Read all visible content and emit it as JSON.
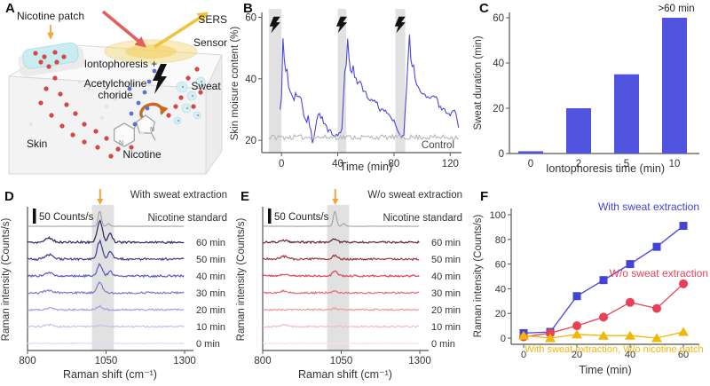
{
  "panels": {
    "A": {
      "letter": "A",
      "labels": {
        "nicotine_patch": "Nicotine patch",
        "sers": "SERS",
        "sensor": "Sensor",
        "iontophoresis": "Iontophoresis +",
        "acetylcholine_line1": "Acetylcholine",
        "acetylcholine_line2": "choride",
        "sweat": "Sweat",
        "skin": "Skin",
        "nicotine": "Nicotine"
      }
    },
    "B": {
      "letter": "B"
    },
    "C": {
      "letter": "C"
    },
    "D": {
      "letter": "D"
    },
    "E": {
      "letter": "E"
    },
    "F": {
      "letter": "F"
    }
  },
  "chart_data": [
    {
      "id": "B",
      "type": "line",
      "title": "",
      "xlabel": "Time (min)",
      "ylabel": "Skin moisure content (%)",
      "xlim": [
        -14,
        128
      ],
      "ylim": [
        16,
        61
      ],
      "xticks": [
        0,
        40,
        80,
        120
      ],
      "yticks": [
        20,
        40,
        60
      ],
      "grid": false,
      "seed": 11,
      "stimulation_bands_min": [
        [
          -9,
          0
        ],
        [
          40,
          46
        ],
        [
          81,
          88
        ]
      ],
      "band_color": "#dcdcdc",
      "bolt_color": "#111111",
      "series": [
        {
          "name": "Iontophoresis",
          "color": "#4a46dc",
          "noise": 0.7,
          "points": [
            [
              -1,
              30
            ],
            [
              0,
              34
            ],
            [
              1,
              53
            ],
            [
              2,
              46
            ],
            [
              3,
              42
            ],
            [
              4,
              43
            ],
            [
              5,
              38
            ],
            [
              6,
              36
            ],
            [
              7,
              35
            ],
            [
              8,
              34
            ],
            [
              9,
              33
            ],
            [
              10,
              35
            ],
            [
              12,
              34
            ],
            [
              14,
              34
            ],
            [
              15,
              31
            ],
            [
              16,
              28
            ],
            [
              17,
              27
            ],
            [
              18,
              26
            ],
            [
              19,
              28
            ],
            [
              20,
              25
            ],
            [
              21,
              23
            ],
            [
              22,
              19
            ],
            [
              23,
              21
            ],
            [
              24,
              23
            ],
            [
              25,
              26
            ],
            [
              26,
              28
            ],
            [
              27,
              29
            ],
            [
              28,
              27
            ],
            [
              29,
              28
            ],
            [
              30,
              26
            ],
            [
              31,
              25
            ],
            [
              32,
              24
            ],
            [
              33,
              23
            ],
            [
              34,
              24
            ],
            [
              35,
              23
            ],
            [
              36,
              22
            ],
            [
              38,
              21
            ],
            [
              40,
              22
            ],
            [
              42,
              22
            ],
            [
              43,
              24
            ],
            [
              44,
              34
            ],
            [
              45,
              43
            ],
            [
              46,
              44
            ],
            [
              47,
              53
            ],
            [
              48,
              47
            ],
            [
              49,
              43
            ],
            [
              50,
              42
            ],
            [
              51,
              44
            ],
            [
              52,
              41
            ],
            [
              54,
              39
            ],
            [
              56,
              39
            ],
            [
              58,
              36
            ],
            [
              60,
              36
            ],
            [
              62,
              33
            ],
            [
              64,
              33
            ],
            [
              66,
              33
            ],
            [
              68,
              32
            ],
            [
              70,
              30
            ],
            [
              72,
              30
            ],
            [
              74,
              30
            ],
            [
              76,
              28
            ],
            [
              78,
              27
            ],
            [
              80,
              26
            ],
            [
              82,
              24
            ],
            [
              84,
              22
            ],
            [
              86,
              21
            ],
            [
              87,
              22
            ],
            [
              88,
              30
            ],
            [
              89,
              38
            ],
            [
              90,
              47
            ],
            [
              91,
              54
            ],
            [
              92,
              46
            ],
            [
              93,
              44
            ],
            [
              94,
              45
            ],
            [
              95,
              40
            ],
            [
              96,
              38
            ],
            [
              98,
              36
            ],
            [
              100,
              35
            ],
            [
              102,
              35
            ],
            [
              104,
              34
            ],
            [
              106,
              33
            ],
            [
              108,
              35
            ],
            [
              110,
              34
            ],
            [
              112,
              31
            ],
            [
              114,
              30
            ],
            [
              116,
              30
            ],
            [
              118,
              29
            ],
            [
              120,
              28
            ],
            [
              122,
              30
            ],
            [
              124,
              29
            ],
            [
              125,
              27
            ],
            [
              126,
              24
            ]
          ]
        },
        {
          "name": "Control",
          "color": "#b7b7b7",
          "noise": 0.8,
          "points": [
            [
              -9,
              21
            ],
            [
              126,
              21
            ]
          ],
          "inline_label": "Control",
          "label_color": "#444444"
        }
      ]
    },
    {
      "id": "C",
      "type": "bar",
      "title": "",
      "xlabel": "Iontophoresis time (min)",
      "ylabel": "Sweat duration (min)",
      "categories": [
        "0",
        "2",
        "5",
        "10"
      ],
      "values": [
        1,
        20,
        35,
        60
      ],
      "yticks": [
        0,
        20,
        40,
        60
      ],
      "ylim": [
        0,
        62
      ],
      "bar_color": "#5053de",
      "annotation": ">60 min"
    },
    {
      "id": "D",
      "type": "spectra",
      "title": "With sweat extraction",
      "scale_label": "50 Counts/s",
      "xlabel": "Raman shift (cm⁻¹)",
      "ylabel": "Raman intensity (Counts/s)",
      "xlim": [
        800,
        1300
      ],
      "xticks": [
        800,
        1050,
        1300
      ],
      "highlight_band": [
        1005,
        1075
      ],
      "arrow_pos": 1031,
      "arrow_color": "#f0a53a",
      "seed": 5,
      "standard": {
        "label": "Nicotine standard",
        "color": "#9a9a9a",
        "noise": 0.15,
        "peaks": [
          {
            "pos": 1030,
            "w": 5,
            "h": 17
          },
          {
            "pos": 1058,
            "w": 5,
            "h": 3
          }
        ]
      },
      "traces": [
        {
          "label": "60 min",
          "color": "#26265e",
          "noise": 1.2,
          "peaks": [
            {
              "pos": 1030,
              "w": 8,
              "h": 24
            },
            {
              "pos": 1063,
              "w": 7,
              "h": 10
            },
            {
              "pos": 868,
              "w": 12,
              "h": 5
            }
          ]
        },
        {
          "label": "50 min",
          "color": "#3c3c96",
          "noise": 1.2,
          "peaks": [
            {
              "pos": 1030,
              "w": 8,
              "h": 20
            },
            {
              "pos": 1063,
              "w": 7,
              "h": 9
            },
            {
              "pos": 868,
              "w": 12,
              "h": 5
            }
          ]
        },
        {
          "label": "40 min",
          "color": "#5a5abc",
          "noise": 1.1,
          "peaks": [
            {
              "pos": 1030,
              "w": 8,
              "h": 13
            },
            {
              "pos": 1063,
              "w": 7,
              "h": 5
            },
            {
              "pos": 868,
              "w": 12,
              "h": 4
            }
          ]
        },
        {
          "label": "30 min",
          "color": "#7b7bd0",
          "noise": 1.1,
          "peaks": [
            {
              "pos": 1030,
              "w": 8,
              "h": 12
            },
            {
              "pos": 868,
              "w": 12,
              "h": 3
            }
          ]
        },
        {
          "label": "20 min",
          "color": "#a2a2e2",
          "noise": 1.0,
          "peaks": [
            {
              "pos": 1030,
              "w": 8,
              "h": 4
            },
            {
              "pos": 868,
              "w": 12,
              "h": 2
            }
          ]
        },
        {
          "label": "10 min",
          "color": "#c2c2ef",
          "noise": 0.9,
          "peaks": [
            {
              "pos": 1030,
              "w": 8,
              "h": 1.5
            },
            {
              "pos": 868,
              "w": 12,
              "h": 2
            }
          ]
        },
        {
          "label": "0 min",
          "color": "#dcdcf7",
          "noise": 0.6,
          "peaks": []
        }
      ]
    },
    {
      "id": "E",
      "type": "spectra",
      "title": "W/o sweat extraction",
      "scale_label": "50 Counts/s",
      "xlabel": "Raman shift (cm⁻¹)",
      "ylabel": "Raman intensity (Counts/s)",
      "xlim": [
        800,
        1300
      ],
      "xticks": [
        800,
        1050,
        1300
      ],
      "highlight_band": [
        1005,
        1075
      ],
      "arrow_pos": 1031,
      "arrow_color": "#f0a53a",
      "seed": 9,
      "standard": {
        "label": "Nicotine standard",
        "color": "#9a9a9a",
        "noise": 0.15,
        "peaks": [
          {
            "pos": 1030,
            "w": 5,
            "h": 17
          },
          {
            "pos": 1058,
            "w": 5,
            "h": 3
          }
        ]
      },
      "traces": [
        {
          "label": "60 min",
          "color": "#5e2230",
          "noise": 1.1,
          "peaks": [
            {
              "pos": 1030,
              "w": 8,
              "h": 4
            },
            {
              "pos": 868,
              "w": 12,
              "h": 2
            }
          ]
        },
        {
          "label": "50 min",
          "color": "#9e3342",
          "noise": 1.1,
          "peaks": [
            {
              "pos": 1030,
              "w": 8,
              "h": 4
            },
            {
              "pos": 868,
              "w": 12,
              "h": 3
            }
          ]
        },
        {
          "label": "40 min",
          "color": "#d94a56",
          "noise": 1.0,
          "peaks": [
            {
              "pos": 1030,
              "w": 8,
              "h": 5
            },
            {
              "pos": 868,
              "w": 12,
              "h": 2
            }
          ]
        },
        {
          "label": "30 min",
          "color": "#e76d78",
          "noise": 1.0,
          "peaks": [
            {
              "pos": 1030,
              "w": 8,
              "h": 2
            },
            {
              "pos": 868,
              "w": 12,
              "h": 2
            }
          ]
        },
        {
          "label": "20 min",
          "color": "#ef97a0",
          "noise": 0.9,
          "peaks": [
            {
              "pos": 1030,
              "w": 8,
              "h": 1.5
            }
          ]
        },
        {
          "label": "10 min",
          "color": "#f6bcc3",
          "noise": 0.9,
          "peaks": [
            {
              "pos": 868,
              "w": 12,
              "h": 2
            }
          ]
        },
        {
          "label": "0 min",
          "color": "#fbdfe2",
          "noise": 0.6,
          "peaks": []
        }
      ]
    },
    {
      "id": "F",
      "type": "scatter-line",
      "title": "",
      "xlabel": "Time (min)",
      "ylabel": "Raman intensity (Counts/s)",
      "x": [
        0,
        10,
        20,
        30,
        40,
        50,
        60
      ],
      "xticks": [
        0,
        20,
        40,
        60
      ],
      "yticks": [
        0,
        20,
        40,
        60,
        80,
        100
      ],
      "xlim": [
        -5,
        65
      ],
      "ylim": [
        -5,
        104
      ],
      "series": [
        {
          "name": "With sweat extraction",
          "color": "#4343d8",
          "marker": "square",
          "values": [
            4,
            5,
            34,
            47,
            60,
            74,
            91
          ]
        },
        {
          "name": "W/o sweat extraction",
          "color": "#e84156",
          "marker": "circle",
          "values": [
            1,
            4,
            10,
            17,
            29,
            24,
            44
          ]
        },
        {
          "name": "With sweat extraction, W/o nicotine patch",
          "color": "#f2b705",
          "marker": "triangle",
          "values": [
            2,
            0,
            3,
            2,
            2,
            0,
            5
          ]
        }
      ]
    }
  ]
}
